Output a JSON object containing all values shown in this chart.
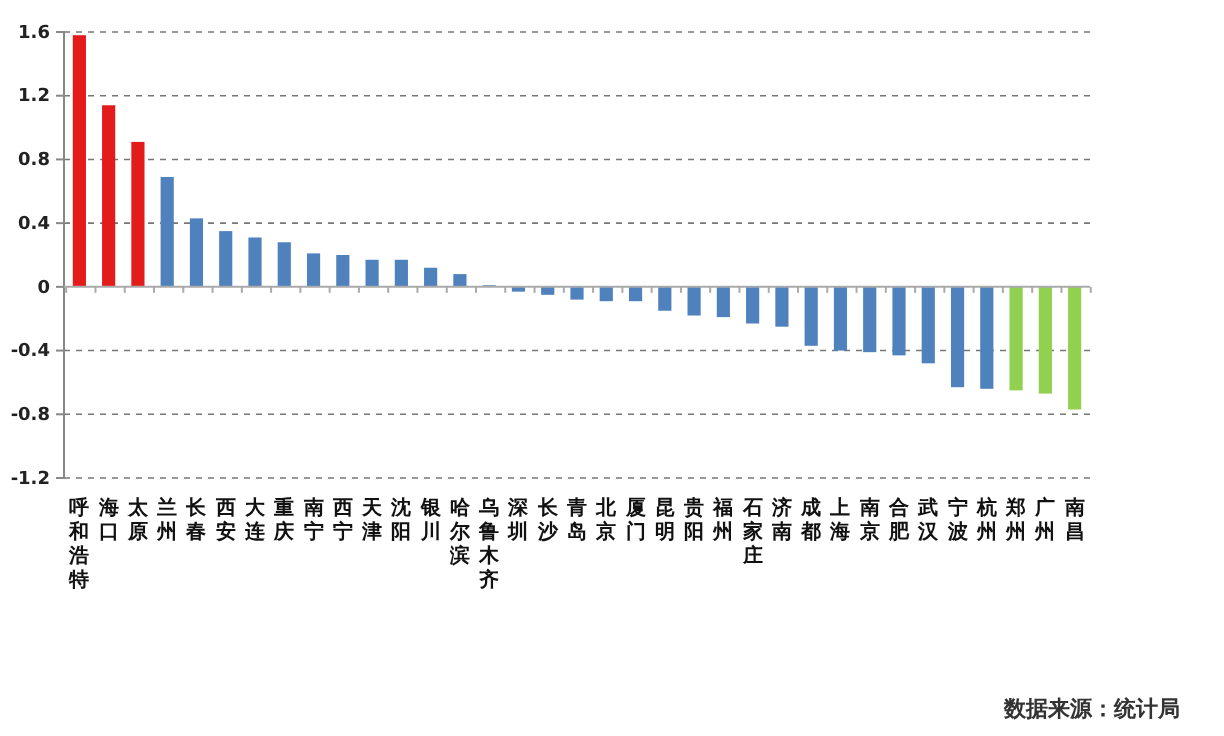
{
  "chart_data": {
    "type": "bar",
    "categories": [
      "呼和浩特",
      "海口",
      "太原",
      "兰州",
      "长春",
      "西安",
      "大连",
      "重庆",
      "南宁",
      "西宁",
      "天津",
      "沈阳",
      "银川",
      "哈尔滨",
      "乌鲁木齐",
      "深圳",
      "长沙",
      "青岛",
      "北京",
      "厦门",
      "昆明",
      "贵阳",
      "福州",
      "石家庄",
      "济南",
      "成都",
      "上海",
      "南京",
      "合肥",
      "武汉",
      "宁波",
      "杭州",
      "郑州",
      "广州",
      "南昌"
    ],
    "values": [
      1.58,
      1.14,
      0.91,
      0.69,
      0.43,
      0.35,
      0.31,
      0.28,
      0.21,
      0.2,
      0.17,
      0.17,
      0.12,
      0.08,
      0.01,
      -0.03,
      -0.05,
      -0.08,
      -0.09,
      -0.09,
      -0.15,
      -0.18,
      -0.19,
      -0.23,
      -0.25,
      -0.37,
      -0.4,
      -0.41,
      -0.43,
      -0.48,
      -0.63,
      -0.64,
      -0.65,
      -0.67,
      -0.77
    ],
    "colors": [
      "#e31b1b",
      "#e31b1b",
      "#e31b1b",
      "#4f81bd",
      "#4f81bd",
      "#4f81bd",
      "#4f81bd",
      "#4f81bd",
      "#4f81bd",
      "#4f81bd",
      "#4f81bd",
      "#4f81bd",
      "#4f81bd",
      "#4f81bd",
      "#4f81bd",
      "#4f81bd",
      "#4f81bd",
      "#4f81bd",
      "#4f81bd",
      "#4f81bd",
      "#4f81bd",
      "#4f81bd",
      "#4f81bd",
      "#4f81bd",
      "#4f81bd",
      "#4f81bd",
      "#4f81bd",
      "#4f81bd",
      "#4f81bd",
      "#4f81bd",
      "#4f81bd",
      "#4f81bd",
      "#92d050",
      "#92d050",
      "#92d050"
    ],
    "ylim": [
      -1.2,
      1.6
    ],
    "yticks": [
      {
        "value": -1.2,
        "label": "-1.2"
      },
      {
        "value": -0.8,
        "label": "-0.8"
      },
      {
        "value": -0.4,
        "label": "-0.4"
      },
      0,
      {
        "value": 0.4,
        "label": "0.4"
      },
      {
        "value": 0.8,
        "label": "0.8"
      },
      {
        "value": 1.2,
        "label": "1.2"
      },
      {
        "value": 1.6,
        "label": "1.6"
      }
    ],
    "grid": "y",
    "annotations": [
      "数据来源：统计局"
    ]
  }
}
